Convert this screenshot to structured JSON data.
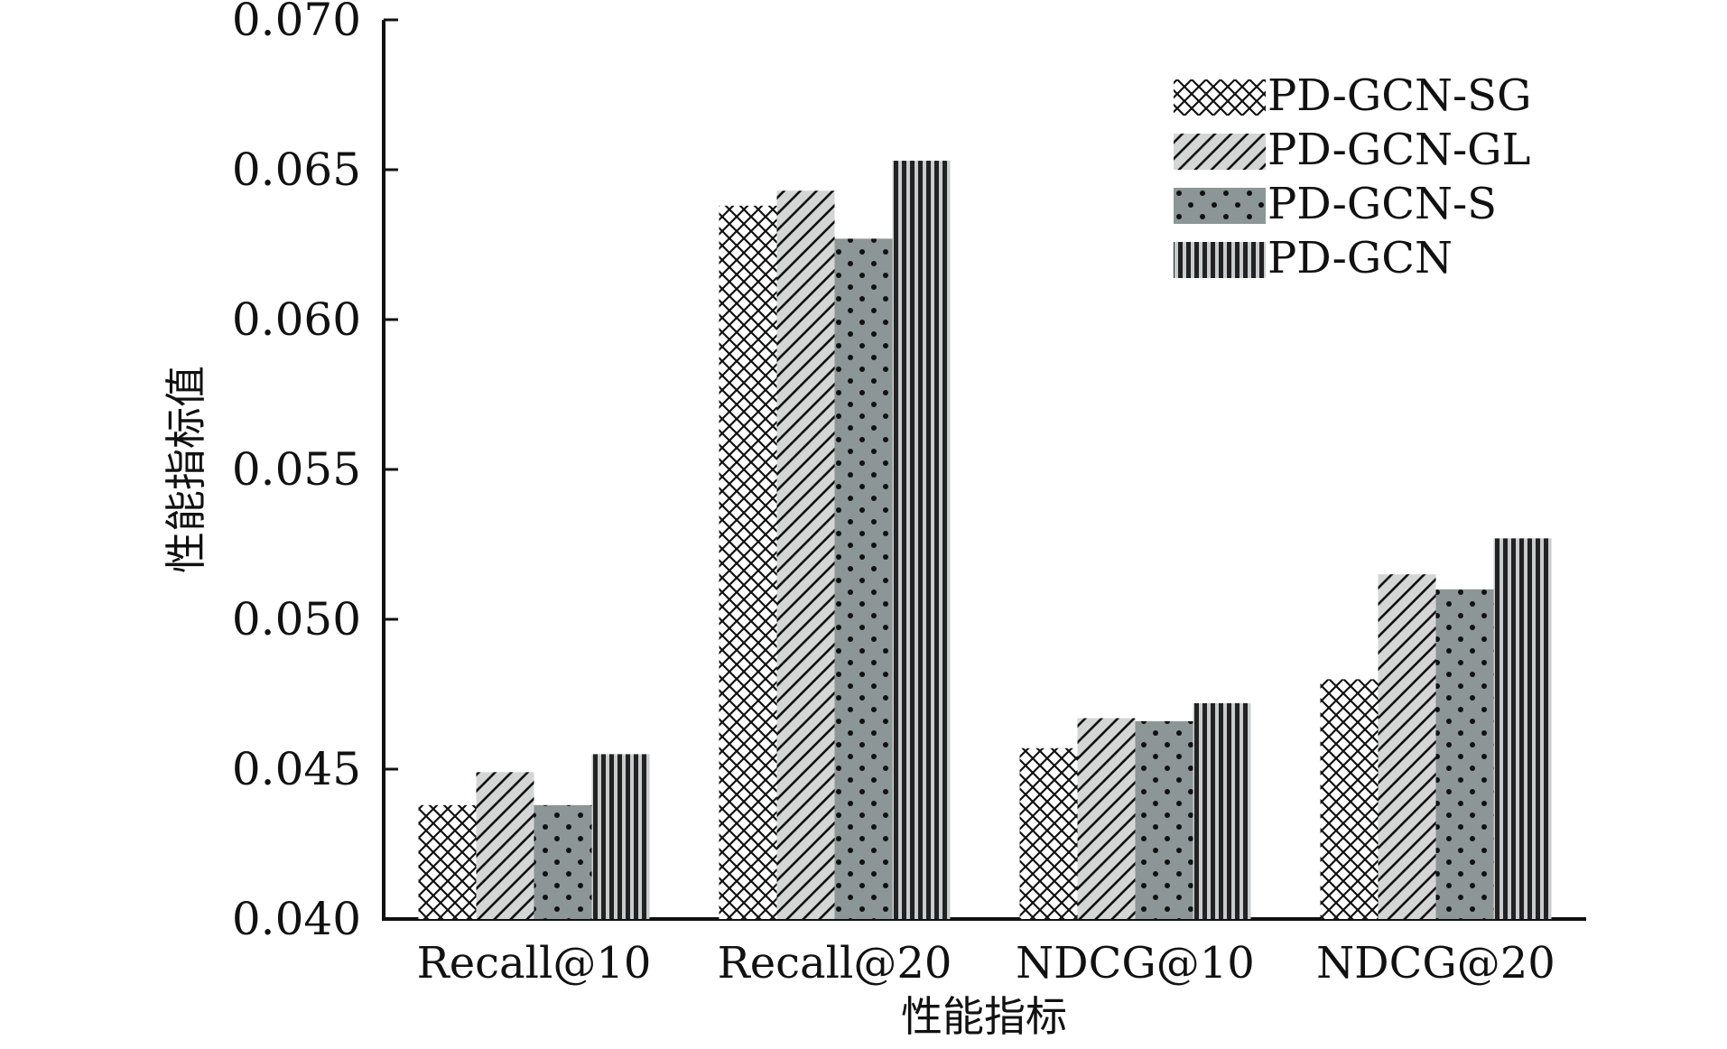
{
  "chart_data": {
    "type": "bar",
    "title": "",
    "xlabel": "性能指标",
    "ylabel": "性能指标值",
    "categories": [
      "Recall@10",
      "Recall@20",
      "NDCG@10",
      "NDCG@20"
    ],
    "ylim": [
      0.04,
      0.07
    ],
    "yticks": [
      "0.040",
      "0.045",
      "0.050",
      "0.055",
      "0.060",
      "0.065",
      "0.070"
    ],
    "legend_position": "top-right",
    "grid": false,
    "series": [
      {
        "name": "PD-GCN-SG",
        "pattern": "crosshatch",
        "fill": "#ffffff",
        "values": [
          0.0438,
          0.0638,
          0.0457,
          0.048
        ]
      },
      {
        "name": "PD-GCN-GL",
        "pattern": "diagonal-stripes",
        "fill": "#d4d6d6",
        "values": [
          0.0449,
          0.0643,
          0.0467,
          0.0515
        ]
      },
      {
        "name": "PD-GCN-S",
        "pattern": "dots",
        "fill": "#8c9696",
        "values": [
          0.0438,
          0.0627,
          0.0466,
          0.051
        ]
      },
      {
        "name": "PD-GCN",
        "pattern": "vertical-stripes",
        "fill": "#5c6464",
        "values": [
          0.0455,
          0.0653,
          0.0472,
          0.0527
        ]
      }
    ]
  }
}
